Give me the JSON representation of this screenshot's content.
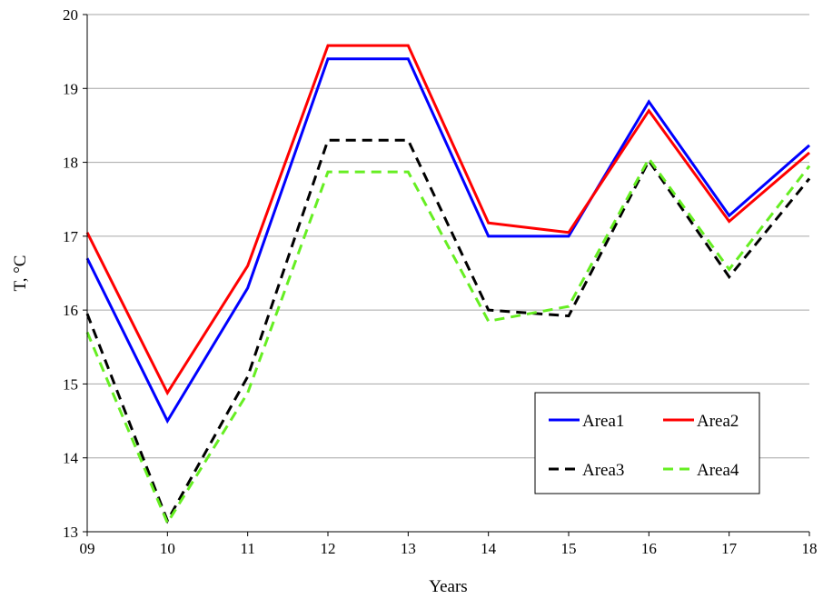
{
  "chart_data": {
    "type": "line",
    "title": "",
    "xlabel": "Years",
    "ylabel": "T, °C",
    "categories": [
      "09",
      "10",
      "11",
      "12",
      "13",
      "14",
      "15",
      "16",
      "17",
      "18"
    ],
    "ylim": [
      13,
      20
    ],
    "yticks": [
      "13",
      "14",
      "15",
      "16",
      "17",
      "18",
      "19",
      "20"
    ],
    "grid": true,
    "legend_position": "bottom-right",
    "series": [
      {
        "name": "Area1",
        "color": "#0000ff",
        "dash": "solid",
        "values": [
          16.7,
          14.5,
          16.3,
          19.4,
          19.4,
          17.0,
          17.0,
          18.82,
          17.28,
          18.23
        ]
      },
      {
        "name": "Area2",
        "color": "#ff0000",
        "dash": "solid",
        "values": [
          17.05,
          14.88,
          16.6,
          19.58,
          19.58,
          17.18,
          17.05,
          18.7,
          17.2,
          18.13
        ]
      },
      {
        "name": "Area3",
        "color": "#000000",
        "dash": "dashed",
        "values": [
          15.95,
          13.15,
          15.1,
          18.3,
          18.3,
          16.0,
          15.92,
          18.02,
          16.45,
          17.78
        ]
      },
      {
        "name": "Area4",
        "color": "#66ee22",
        "dash": "dashed",
        "values": [
          15.7,
          13.12,
          14.88,
          17.87,
          17.87,
          15.85,
          16.05,
          18.05,
          16.55,
          17.95
        ]
      }
    ]
  }
}
